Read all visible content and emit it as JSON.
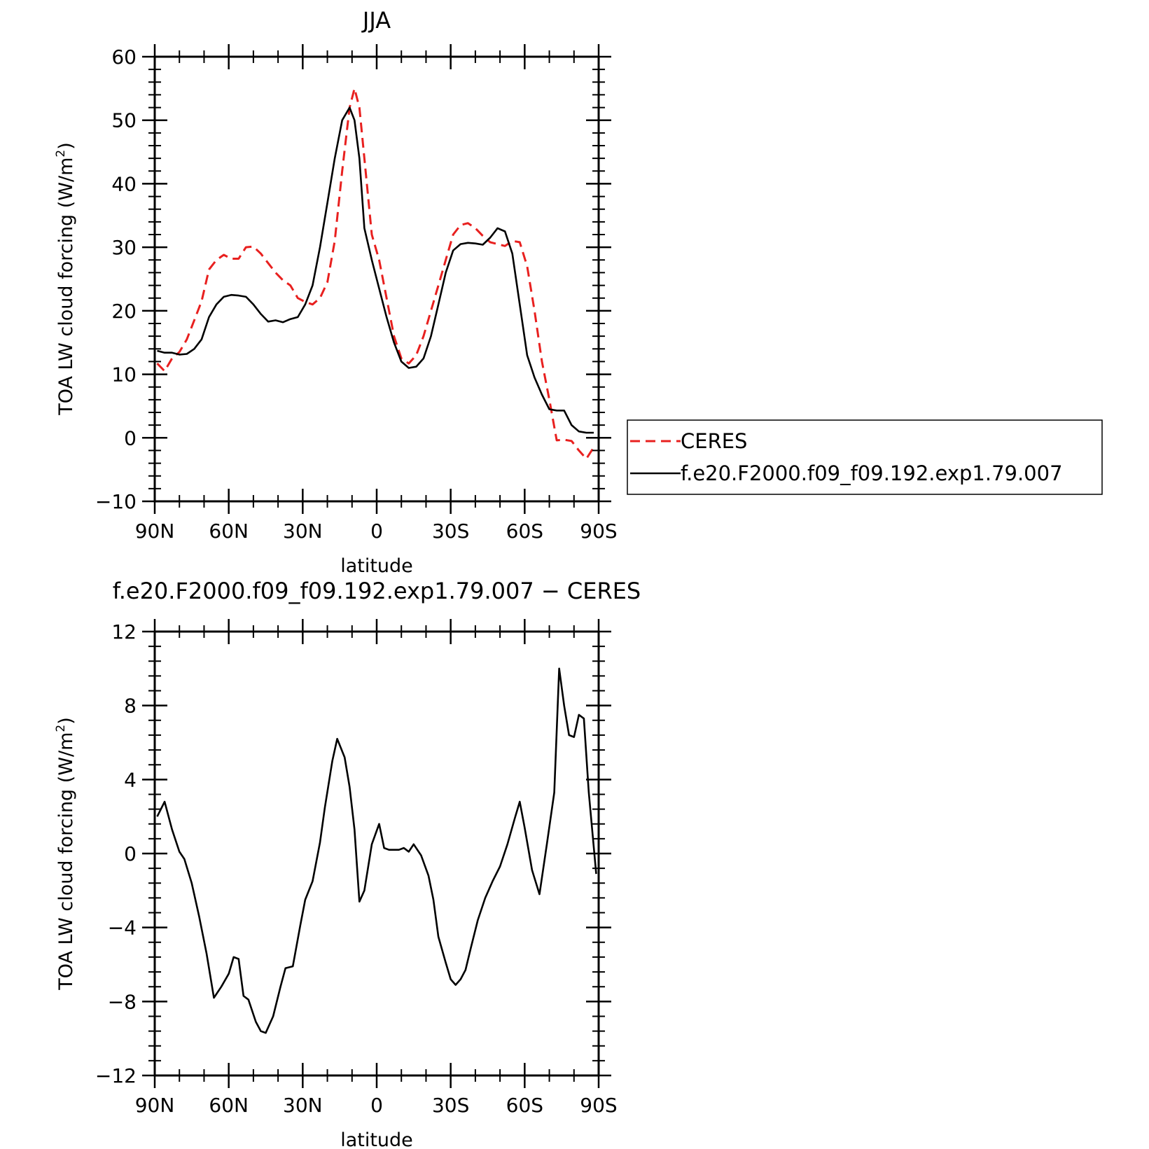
{
  "chart_data": [
    {
      "type": "line",
      "title": "JJA",
      "xlabel": "latitude",
      "ylabel_main": "TOA LW cloud forcing (W/m",
      "ylabel_sup": "2",
      "ylabel_close": ")",
      "xlim": [
        90,
        -90
      ],
      "ylim": [
        -10,
        60
      ],
      "yticks": [
        -10,
        0,
        10,
        20,
        30,
        40,
        50,
        60
      ],
      "yticklabels": [
        "−10",
        "0",
        "10",
        "20",
        "30",
        "40",
        "50",
        "60"
      ],
      "xticks": [
        90,
        60,
        30,
        0,
        -30,
        -60,
        -90
      ],
      "xticklabels": [
        "90N",
        "60N",
        "30N",
        "0",
        "30S",
        "60S",
        "90S"
      ],
      "legend": {
        "placement": "right",
        "entries": [
          "CERES",
          "f.e20.F2000.f09_f09.192.exp1.79.007"
        ]
      },
      "series": [
        {
          "name": "CERES",
          "color": "#e8201f",
          "dash": "dashed",
          "x": [
            89,
            86,
            83,
            80,
            77,
            74,
            71,
            68,
            65,
            62,
            59,
            56,
            53,
            50,
            47,
            44,
            41,
            38,
            35,
            32,
            29,
            26,
            23,
            20,
            17,
            14,
            11,
            9,
            7,
            5,
            2,
            -1,
            -4,
            -7,
            -10,
            -13,
            -16,
            -19,
            -22,
            -25,
            -28,
            -31,
            -34,
            -37,
            -40,
            -43,
            -46,
            -49,
            -52,
            -55,
            -58,
            -61,
            -64,
            -67,
            -70,
            -73,
            -76,
            -79,
            -82,
            -85,
            -88
          ],
          "y": [
            11.7,
            10.5,
            12.5,
            13.5,
            15.5,
            18.5,
            21.5,
            26.5,
            28,
            28.8,
            28.2,
            28.2,
            30,
            30.1,
            29,
            27.5,
            26,
            24.8,
            24,
            22,
            21.4,
            21,
            22,
            24.5,
            31,
            42,
            52,
            55,
            52,
            44,
            32,
            28,
            22,
            16,
            12.5,
            11.7,
            13,
            16,
            20,
            24,
            28,
            32,
            33.5,
            33.8,
            33,
            31.8,
            30.8,
            30.5,
            30.2,
            31,
            30.8,
            27,
            20,
            12,
            6,
            -0.4,
            -0.3,
            -0.5,
            -2,
            -3.3,
            -1.5
          ]
        },
        {
          "name": "f.e20.F2000.f09_f09.192.exp1.79.007",
          "color": "#000000",
          "dash": "solid",
          "x": [
            89,
            86,
            83,
            80,
            77,
            74,
            71,
            68,
            65,
            62,
            59,
            56,
            53,
            50,
            47,
            44,
            41,
            38,
            35,
            32,
            29,
            26,
            23,
            20,
            17,
            14,
            11,
            9,
            7,
            5,
            2,
            -1,
            -4,
            -7,
            -10,
            -13,
            -16,
            -19,
            -22,
            -25,
            -28,
            -31,
            -34,
            -37,
            -40,
            -43,
            -46,
            -49,
            -52,
            -55,
            -58,
            -61,
            -64,
            -67,
            -70,
            -73,
            -76,
            -79,
            -82,
            -85,
            -88
          ],
          "y": [
            13.7,
            13.4,
            13.4,
            13.1,
            13.2,
            14,
            15.5,
            19,
            21,
            22.2,
            22.5,
            22.4,
            22.2,
            21,
            19.5,
            18.3,
            18.5,
            18.2,
            18.7,
            19,
            21,
            24,
            30,
            37,
            44,
            50,
            52,
            50,
            44,
            33,
            28,
            23.5,
            19,
            15,
            12,
            11,
            11.2,
            12.5,
            16,
            21,
            26,
            29.5,
            30.5,
            30.7,
            30.6,
            30.4,
            31.5,
            33,
            32.5,
            29,
            21,
            13,
            9.5,
            6.8,
            4.5,
            4.3,
            4.3,
            2,
            1,
            0.8,
            0.8
          ]
        }
      ]
    },
    {
      "type": "line",
      "title": "f.e20.F2000.f09_f09.192.exp1.79.007 − CERES",
      "xlabel": "latitude",
      "ylabel_main": "TOA LW cloud forcing (W/m",
      "ylabel_sup": "2",
      "ylabel_close": ")",
      "xlim": [
        90,
        -90
      ],
      "ylim": [
        -12,
        12
      ],
      "yticks": [
        -12,
        -8,
        -4,
        0,
        4,
        8,
        12
      ],
      "yticklabels": [
        "−12",
        "−8",
        "−4",
        "0",
        "4",
        "8",
        "12"
      ],
      "xticks": [
        90,
        60,
        30,
        0,
        -30,
        -60,
        -90
      ],
      "xticklabels": [
        "90N",
        "60N",
        "30N",
        "0",
        "30S",
        "60S",
        "90S"
      ],
      "series": [
        {
          "name": "",
          "color": "#000000",
          "dash": "solid",
          "x": [
            89,
            86,
            83,
            80,
            78,
            75,
            72,
            69,
            66,
            63,
            60,
            58,
            56,
            54,
            52,
            49,
            47,
            45,
            42,
            39,
            37,
            34,
            31,
            29,
            26,
            23,
            21,
            18,
            16,
            13,
            11,
            9,
            7,
            5,
            2,
            -1,
            -3,
            -5,
            -7,
            -9,
            -11,
            -13,
            -15,
            -18,
            -21,
            -23,
            -25,
            -28,
            -30,
            -32,
            -34,
            -36,
            -38,
            -41,
            -44,
            -47,
            -50,
            -53,
            -56,
            -58,
            -60,
            -63,
            -66,
            -69,
            -72,
            -74,
            -76,
            -78,
            -80,
            -82,
            -84,
            -86,
            -89
          ],
          "y": [
            2,
            2.8,
            1.3,
            0.1,
            -0.3,
            -1.6,
            -3.4,
            -5.4,
            -7.8,
            -7.2,
            -6.5,
            -5.6,
            -5.7,
            -7.7,
            -7.9,
            -9.1,
            -9.6,
            -9.7,
            -8.8,
            -7.2,
            -6.2,
            -6.1,
            -3.9,
            -2.5,
            -1.5,
            0.6,
            2.5,
            5,
            6.2,
            5.2,
            3.6,
            1.3,
            -2.6,
            -2,
            0.5,
            1.6,
            0.3,
            0.2,
            0.2,
            0.2,
            0.3,
            0.1,
            0.5,
            -0.1,
            -1.2,
            -2.5,
            -4.5,
            -5.9,
            -6.8,
            -7.1,
            -6.8,
            -6.3,
            -5.2,
            -3.6,
            -2.4,
            -1.5,
            -0.7,
            0.5,
            1.9,
            2.8,
            1.4,
            -0.9,
            -2.2,
            0.5,
            3.3,
            10,
            8,
            6.4,
            6.3,
            7.5,
            7.3,
            3.3,
            -1.1
          ]
        }
      ]
    }
  ]
}
